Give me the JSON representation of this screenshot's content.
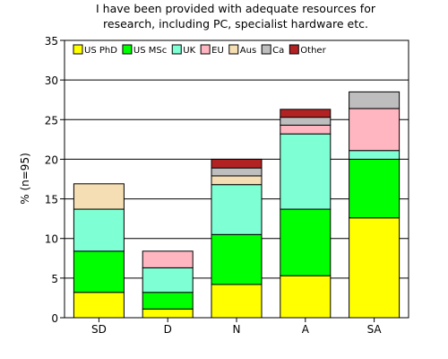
{
  "chart_data": {
    "type": "bar",
    "stacked": true,
    "title_lines": [
      "I have been provided with adequate resources for",
      "research, including PC, specialist hardware etc."
    ],
    "xlabel": "",
    "ylabel": "% (n=95)",
    "ylim": [
      0,
      35
    ],
    "yticks": [
      0,
      5,
      10,
      15,
      20,
      25,
      30,
      35
    ],
    "grid": true,
    "legend_position": "top-left",
    "categories": [
      "SD",
      "D",
      "N",
      "A",
      "SA"
    ],
    "series": [
      {
        "name": "US PhD",
        "color": "#ffff00",
        "values": [
          3.2,
          1.1,
          4.2,
          5.3,
          12.6
        ]
      },
      {
        "name": "US MSc",
        "color": "#00ff00",
        "values": [
          5.2,
          2.1,
          6.3,
          8.4,
          7.4
        ]
      },
      {
        "name": "UK",
        "color": "#7fffd4",
        "values": [
          5.3,
          3.1,
          6.3,
          9.5,
          1.1
        ]
      },
      {
        "name": "EU",
        "color": "#ffb6c1",
        "values": [
          0,
          2.1,
          0,
          1.1,
          5.3
        ]
      },
      {
        "name": "Aus",
        "color": "#f5deb3",
        "values": [
          3.2,
          0,
          1.1,
          0,
          0
        ]
      },
      {
        "name": "Ca",
        "color": "#bebebe",
        "values": [
          0,
          0,
          1.0,
          1.0,
          2.1
        ]
      },
      {
        "name": "Other",
        "color": "#b22222",
        "values": [
          0,
          0,
          1.1,
          1.0,
          0
        ]
      }
    ]
  }
}
